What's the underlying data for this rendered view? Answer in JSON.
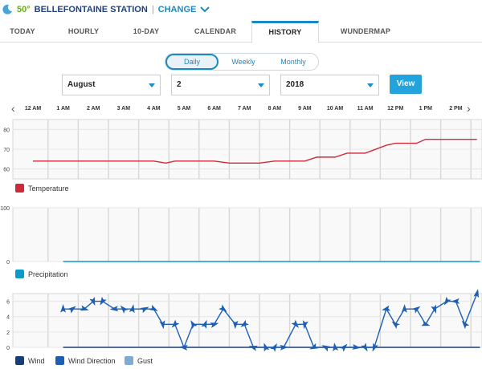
{
  "header": {
    "temp": "50°",
    "station": "BELLEFONTAINE STATION",
    "separator": "|",
    "change": "CHANGE"
  },
  "tabs": [
    {
      "label": "TODAY"
    },
    {
      "label": "HOURLY"
    },
    {
      "label": "10-DAY"
    },
    {
      "label": "CALENDAR"
    },
    {
      "label": "HISTORY",
      "active": true
    },
    {
      "label": "WUNDERMAP"
    }
  ],
  "range_toggle": {
    "daily": "Daily",
    "weekly": "Weekly",
    "monthly": "Monthly",
    "selected": "Daily"
  },
  "date_select": {
    "month": "August",
    "day": "2",
    "year": "2018",
    "view_label": "View"
  },
  "colors": {
    "accent": "#1a8ac2",
    "temperature": "#d0293a",
    "precipitation": "#0c9ac9",
    "wind": "#173e7a",
    "wind_direction": "#1f5fb3",
    "gust": "#7faad6",
    "grid": "#d7d7d7"
  },
  "time_axis": [
    "12 AM",
    "1 AM",
    "2 AM",
    "3 AM",
    "4 AM",
    "5 AM",
    "6 AM",
    "7 AM",
    "8 AM",
    "9 AM",
    "10 AM",
    "11 AM",
    "12 PM",
    "1 PM",
    "2 PM"
  ],
  "nav": {
    "prev": "‹",
    "next": "›"
  },
  "chart_data": [
    {
      "type": "line",
      "title": "",
      "legend": [
        "Temperature"
      ],
      "series": [
        {
          "name": "Temperature",
          "x": [
            0,
            1,
            2,
            3,
            4,
            4.4,
            4.7,
            5,
            6,
            6.5,
            7,
            7.5,
            8,
            8.7,
            9,
            9.4,
            10,
            10.4,
            11,
            11.7,
            12,
            12.7,
            13,
            13.7,
            14,
            14.7
          ],
          "values": [
            64,
            64,
            64,
            64,
            64,
            63,
            64,
            64,
            64,
            63,
            63,
            63,
            64,
            64,
            64,
            66,
            66,
            68,
            68,
            72,
            73,
            73,
            75,
            75,
            75,
            75
          ]
        }
      ],
      "y_ticks": [
        60,
        70,
        80
      ],
      "ylim": [
        55,
        85
      ],
      "grid": true
    },
    {
      "type": "line",
      "title": "",
      "legend": [
        "Precipitation"
      ],
      "series": [
        {
          "name": "Precipitation",
          "x": [
            1,
            14.8
          ],
          "values": [
            0,
            0
          ]
        }
      ],
      "y_ticks": [
        0,
        100
      ],
      "ylim": [
        0,
        100
      ],
      "grid": true
    },
    {
      "type": "line",
      "title": "",
      "legend": [
        "Wind",
        "Wind Direction",
        "Gust"
      ],
      "series": [
        {
          "name": "Wind",
          "x": [
            1,
            14.8
          ],
          "values": [
            0,
            0
          ]
        },
        {
          "name": "Wind Direction",
          "x": [
            1,
            1.3,
            1.7,
            2,
            2.3,
            2.7,
            3,
            3.3,
            3.7,
            4,
            4.3,
            4.7,
            5,
            5.3,
            5.7,
            6,
            6.3,
            6.7,
            7,
            7.3,
            7.7,
            8,
            8.3,
            8.7,
            9,
            9.3,
            9.7,
            10,
            10.3,
            10.7,
            11,
            11.3,
            11.7,
            12,
            12.3,
            12.7,
            13,
            13.3,
            13.7,
            14,
            14.3,
            14.7
          ],
          "values": [
            5,
            5,
            5,
            6,
            6,
            5,
            5,
            5,
            5,
            5,
            3,
            3,
            0,
            3,
            3,
            3,
            5,
            3,
            3,
            0,
            0,
            0,
            0,
            3,
            3,
            0,
            0,
            0,
            0,
            0,
            0,
            0,
            5,
            3,
            5,
            5,
            3,
            5,
            6,
            6,
            3,
            7
          ]
        }
      ],
      "y_ticks": [
        0,
        2,
        4,
        6
      ],
      "ylim": [
        0,
        7
      ],
      "grid": true
    }
  ]
}
